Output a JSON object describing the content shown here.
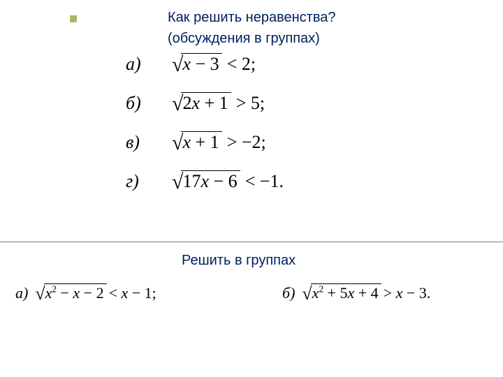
{
  "colors": {
    "title_text": "#002060",
    "bullet_square": "#a2bb66",
    "math_text": "#000000",
    "divider": "#7f7f7f",
    "background": "#ffffff"
  },
  "typography": {
    "title_font": "Arial",
    "title_fontsize": 20,
    "math_font": "Times New Roman",
    "math_fontsize": 26,
    "lower_math_fontsize": 22
  },
  "title": {
    "line1": "Как решить неравенства?",
    "line2": "(обсуждения в группах)"
  },
  "equations": [
    {
      "label": "а)",
      "radicand_prefix": "",
      "radicand_var": "x",
      "radicand_suffix": " − 3",
      "op": "<",
      "rhs": "2;"
    },
    {
      "label": "б)",
      "radicand_prefix": "2",
      "radicand_var": "x",
      "radicand_suffix": " + 1",
      "op": ">",
      "rhs": "5;"
    },
    {
      "label": "в)",
      "radicand_prefix": "",
      "radicand_var": "x",
      "radicand_suffix": " + 1",
      "op": ">",
      "rhs": "−2;"
    },
    {
      "label": "г)",
      "radicand_prefix": "17",
      "radicand_var": "x",
      "radicand_suffix": " − 6",
      "op": "<",
      "rhs": "−1."
    }
  ],
  "subtitle": "Решить в группах",
  "lower": {
    "a_label": "а)",
    "a_rad_p1": "x",
    "a_rad_sup": "2",
    "a_rad_p2": " − ",
    "a_rad_p3": "x",
    "a_rad_p4": " − 2",
    "a_op_pre": " < ",
    "a_rhs_var": "x",
    "a_rhs_tail": " − 1;",
    "b_label": "б)",
    "b_rad_p1": "x",
    "b_rad_sup": "2",
    "b_rad_p2": " + 5",
    "b_rad_p3": "x",
    "b_rad_p4": " + 4",
    "b_op_pre": " > ",
    "b_rhs_var": "x",
    "b_rhs_tail": " − 3."
  }
}
